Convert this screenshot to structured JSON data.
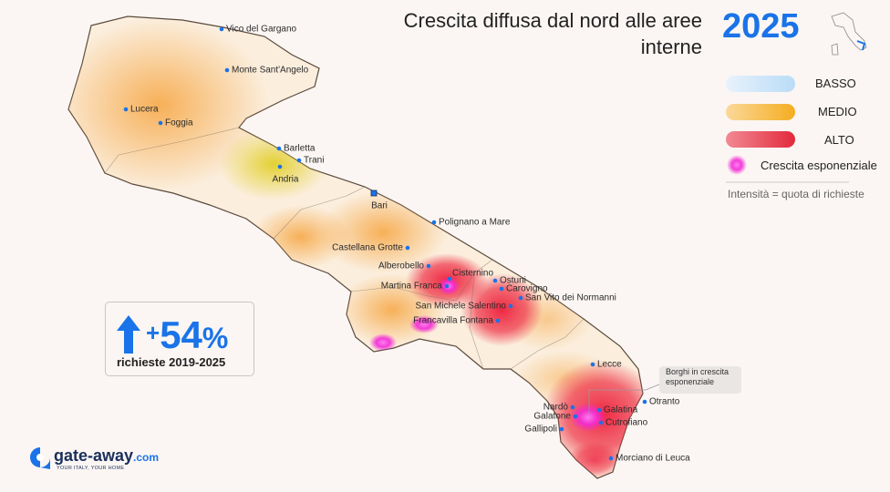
{
  "header": {
    "title": "Crescita diffusa dal nord alle aree interne",
    "year": "2025"
  },
  "legend": {
    "items": [
      "BASSO",
      "MEDIO",
      "ALTO",
      "Crescita esponenziale"
    ],
    "note": "Intensità = quota di richieste"
  },
  "stat": {
    "sign": "+",
    "number": "54",
    "unit": "%",
    "label": "richieste 2019-2025"
  },
  "annotation": "Borghi in crescita esponenziale",
  "cities": [
    "Vico del Gargano",
    "Monte Sant'Angelo",
    "Lucera",
    "Foggia",
    "Barletta",
    "Trani",
    "Andria",
    "Bari",
    "Polignano a Mare",
    "Castellana Grotte",
    "Alberobello",
    "Cisternino",
    "Ostuni",
    "Martina Franca",
    "Carovigno",
    "San Vito dei Normanni",
    "San Michele Salentino",
    "Francavilla Fontana",
    "Lecce",
    "Nardò",
    "Galatina",
    "Galatone",
    "Cutrofiano",
    "Otranto",
    "Gallipoli",
    "Morciano di Leuca"
  ],
  "logo": {
    "name": "gate-away",
    "domain": ".com",
    "tagline": "YOUR ITALY, YOUR HOME"
  }
}
